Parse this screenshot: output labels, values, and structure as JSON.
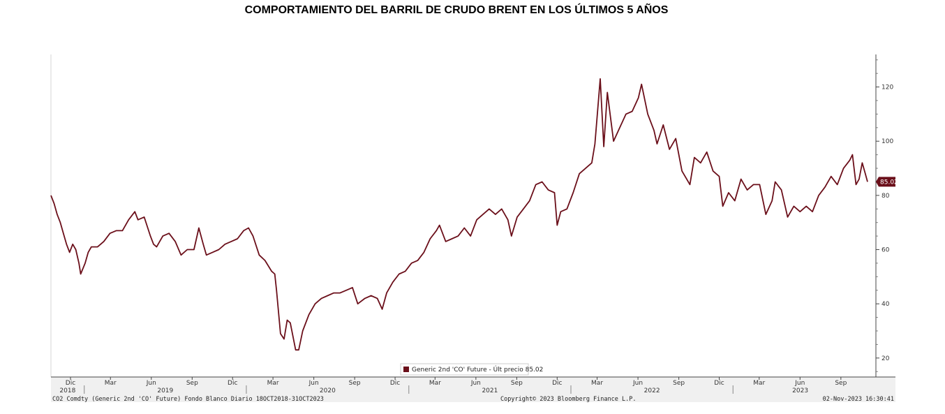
{
  "header": {
    "title": "COMPORTAMIENTO DEL BARRIL DE CRUDO BRENT EN LOS ÚLTIMOS 5 AÑOS"
  },
  "footer": {
    "left": "CO2 Comdty (Generic 2nd 'CO' Future) Fondo Blanco  Diario 18OCT2018-31OCT2023",
    "center": "Copyright© 2023 Bloomberg Finance L.P.",
    "right": "02-Nov-2023 16:30:41"
  },
  "colors": {
    "series": "#6b0f1a",
    "axis": "#444444",
    "band": "#f0f0f0"
  },
  "chart_data": {
    "type": "line",
    "title": "COMPORTAMIENTO DEL BARRIL DE CRUDO BRENT EN LOS ÚLTIMOS 5 AÑOS",
    "ylim": [
      13,
      132
    ],
    "yticks": [
      20,
      40,
      60,
      80,
      100,
      120
    ],
    "y_axis_side": "right",
    "grid": false,
    "legend_position": "bottom-center",
    "last_price_label": "85.02",
    "month_ticks": [
      "Dic",
      "Mar",
      "Jun",
      "Sep",
      "Dic",
      "Mar",
      "Jun",
      "Sep",
      "Dic",
      "Mar",
      "Jun",
      "Sep",
      "Dic",
      "Mar",
      "Jun",
      "Sep",
      "Dic",
      "Mar",
      "Jun",
      "Sep"
    ],
    "year_labels": [
      "2018",
      "2019",
      "2020",
      "2021",
      "2022",
      "2023"
    ],
    "x_start": "2018-10-18",
    "x_end": "2023-10-31",
    "series": [
      {
        "name": "Generic 2nd 'CO' Future - Últ precio 85.02",
        "points": [
          [
            "2018-10-18",
            80
          ],
          [
            "2018-10-25",
            77
          ],
          [
            "2018-11-01",
            73
          ],
          [
            "2018-11-08",
            70
          ],
          [
            "2018-11-15",
            66
          ],
          [
            "2018-11-22",
            62
          ],
          [
            "2018-11-29",
            59
          ],
          [
            "2018-12-06",
            62
          ],
          [
            "2018-12-13",
            60
          ],
          [
            "2018-12-20",
            55
          ],
          [
            "2018-12-24",
            51
          ],
          [
            "2019-01-03",
            55
          ],
          [
            "2019-01-10",
            59
          ],
          [
            "2019-01-17",
            61
          ],
          [
            "2019-01-24",
            61
          ],
          [
            "2019-01-31",
            61
          ],
          [
            "2019-02-14",
            63
          ],
          [
            "2019-02-28",
            66
          ],
          [
            "2019-03-14",
            67
          ],
          [
            "2019-03-28",
            67
          ],
          [
            "2019-04-11",
            71
          ],
          [
            "2019-04-25",
            74
          ],
          [
            "2019-05-02",
            71
          ],
          [
            "2019-05-16",
            72
          ],
          [
            "2019-05-30",
            65
          ],
          [
            "2019-06-06",
            62
          ],
          [
            "2019-06-13",
            61
          ],
          [
            "2019-06-27",
            65
          ],
          [
            "2019-07-11",
            66
          ],
          [
            "2019-07-25",
            63
          ],
          [
            "2019-08-07",
            58
          ],
          [
            "2019-08-21",
            60
          ],
          [
            "2019-09-05",
            60
          ],
          [
            "2019-09-16",
            68
          ],
          [
            "2019-09-26",
            62
          ],
          [
            "2019-10-03",
            58
          ],
          [
            "2019-10-17",
            59
          ],
          [
            "2019-10-31",
            60
          ],
          [
            "2019-11-14",
            62
          ],
          [
            "2019-11-28",
            63
          ],
          [
            "2019-12-12",
            64
          ],
          [
            "2019-12-26",
            67
          ],
          [
            "2020-01-06",
            68
          ],
          [
            "2020-01-16",
            65
          ],
          [
            "2020-01-30",
            58
          ],
          [
            "2020-02-12",
            56
          ],
          [
            "2020-02-27",
            52
          ],
          [
            "2020-03-05",
            51
          ],
          [
            "2020-03-09",
            45
          ],
          [
            "2020-03-18",
            29
          ],
          [
            "2020-03-26",
            27
          ],
          [
            "2020-04-02",
            34
          ],
          [
            "2020-04-09",
            33
          ],
          [
            "2020-04-21",
            23
          ],
          [
            "2020-04-28",
            23
          ],
          [
            "2020-05-07",
            30
          ],
          [
            "2020-05-21",
            36
          ],
          [
            "2020-06-04",
            40
          ],
          [
            "2020-06-18",
            42
          ],
          [
            "2020-07-02",
            43
          ],
          [
            "2020-07-16",
            44
          ],
          [
            "2020-07-30",
            44
          ],
          [
            "2020-08-13",
            45
          ],
          [
            "2020-08-27",
            46
          ],
          [
            "2020-09-08",
            40
          ],
          [
            "2020-09-24",
            42
          ],
          [
            "2020-10-08",
            43
          ],
          [
            "2020-10-22",
            42
          ],
          [
            "2020-11-02",
            38
          ],
          [
            "2020-11-12",
            44
          ],
          [
            "2020-11-26",
            48
          ],
          [
            "2020-12-10",
            51
          ],
          [
            "2020-12-24",
            52
          ],
          [
            "2021-01-07",
            55
          ],
          [
            "2021-01-21",
            56
          ],
          [
            "2021-02-04",
            59
          ],
          [
            "2021-02-18",
            64
          ],
          [
            "2021-03-04",
            67
          ],
          [
            "2021-03-11",
            69
          ],
          [
            "2021-03-25",
            63
          ],
          [
            "2021-04-08",
            64
          ],
          [
            "2021-04-22",
            65
          ],
          [
            "2021-05-06",
            68
          ],
          [
            "2021-05-20",
            65
          ],
          [
            "2021-06-03",
            71
          ],
          [
            "2021-06-17",
            73
          ],
          [
            "2021-07-01",
            75
          ],
          [
            "2021-07-15",
            73
          ],
          [
            "2021-07-29",
            75
          ],
          [
            "2021-08-12",
            71
          ],
          [
            "2021-08-20",
            65
          ],
          [
            "2021-09-02",
            72
          ],
          [
            "2021-09-16",
            75
          ],
          [
            "2021-09-30",
            78
          ],
          [
            "2021-10-14",
            84
          ],
          [
            "2021-10-28",
            85
          ],
          [
            "2021-11-11",
            82
          ],
          [
            "2021-11-25",
            81
          ],
          [
            "2021-12-01",
            69
          ],
          [
            "2021-12-09",
            74
          ],
          [
            "2021-12-23",
            75
          ],
          [
            "2022-01-06",
            81
          ],
          [
            "2022-01-20",
            88
          ],
          [
            "2022-02-03",
            90
          ],
          [
            "2022-02-17",
            92
          ],
          [
            "2022-02-24",
            99
          ],
          [
            "2022-03-08",
            123
          ],
          [
            "2022-03-16",
            98
          ],
          [
            "2022-03-24",
            118
          ],
          [
            "2022-04-07",
            100
          ],
          [
            "2022-04-21",
            105
          ],
          [
            "2022-05-05",
            110
          ],
          [
            "2022-05-19",
            111
          ],
          [
            "2022-06-02",
            116
          ],
          [
            "2022-06-09",
            121
          ],
          [
            "2022-06-23",
            110
          ],
          [
            "2022-07-07",
            104
          ],
          [
            "2022-07-14",
            99
          ],
          [
            "2022-07-28",
            106
          ],
          [
            "2022-08-11",
            97
          ],
          [
            "2022-08-25",
            101
          ],
          [
            "2022-09-08",
            89
          ],
          [
            "2022-09-26",
            84
          ],
          [
            "2022-10-06",
            94
          ],
          [
            "2022-10-20",
            92
          ],
          [
            "2022-11-03",
            96
          ],
          [
            "2022-11-17",
            89
          ],
          [
            "2022-12-01",
            87
          ],
          [
            "2022-12-09",
            76
          ],
          [
            "2022-12-22",
            81
          ],
          [
            "2023-01-05",
            78
          ],
          [
            "2023-01-19",
            86
          ],
          [
            "2023-02-02",
            82
          ],
          [
            "2023-02-16",
            84
          ],
          [
            "2023-03-02",
            84
          ],
          [
            "2023-03-16",
            73
          ],
          [
            "2023-03-30",
            78
          ],
          [
            "2023-04-06",
            85
          ],
          [
            "2023-04-20",
            82
          ],
          [
            "2023-05-04",
            72
          ],
          [
            "2023-05-18",
            76
          ],
          [
            "2023-06-01",
            74
          ],
          [
            "2023-06-15",
            76
          ],
          [
            "2023-06-29",
            74
          ],
          [
            "2023-07-13",
            80
          ],
          [
            "2023-07-27",
            83
          ],
          [
            "2023-08-10",
            87
          ],
          [
            "2023-08-24",
            84
          ],
          [
            "2023-09-07",
            90
          ],
          [
            "2023-09-21",
            93
          ],
          [
            "2023-09-27",
            95
          ],
          [
            "2023-10-05",
            84
          ],
          [
            "2023-10-12",
            86
          ],
          [
            "2023-10-19",
            92
          ],
          [
            "2023-10-26",
            88
          ],
          [
            "2023-10-31",
            85.02
          ]
        ]
      }
    ]
  }
}
